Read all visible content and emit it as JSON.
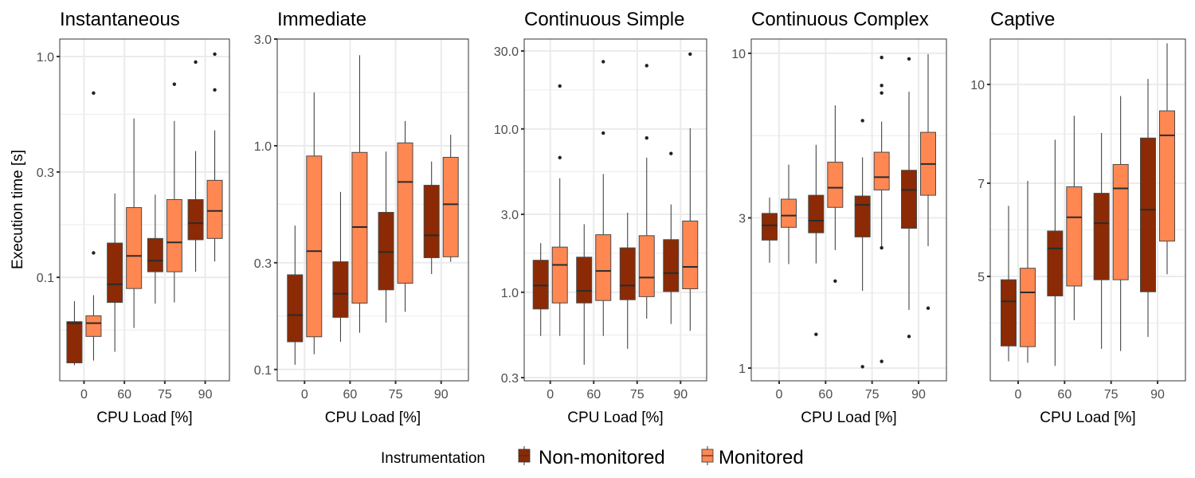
{
  "chart_data": {
    "type": "boxplot",
    "facet_layout": "1 row x 5 columns, independent y scales (log10)",
    "ylabel": "Execution time [s]",
    "xlabel": "CPU Load [%]",
    "categories": [
      "0",
      "60",
      "75",
      "90"
    ],
    "legend": {
      "title": "Instrumentation",
      "position": "bottom",
      "entries": [
        {
          "name": "Non-monitored",
          "color": "#8B2A04"
        },
        {
          "name": "Monitored",
          "color": "#FF8752"
        }
      ]
    },
    "grid": true,
    "panels": [
      {
        "title": "Instantaneous",
        "yscale": "log10",
        "ylim": [
          0.034,
          1.2
        ],
        "yticks": [
          0.1,
          0.3,
          1.0
        ],
        "ytick_labels": [
          "0.1",
          "0.3",
          "1.0"
        ],
        "series": [
          {
            "name": "Non-monitored",
            "boxes": [
              {
                "cat": "0",
                "lower": 0.04,
                "q1": 0.041,
                "median": 0.062,
                "q3": 0.063,
                "upper": 0.078,
                "outliers": []
              },
              {
                "cat": "60",
                "lower": 0.046,
                "q1": 0.077,
                "median": 0.093,
                "q3": 0.143,
                "upper": 0.24,
                "outliers": []
              },
              {
                "cat": "75",
                "lower": 0.076,
                "q1": 0.106,
                "median": 0.119,
                "q3": 0.15,
                "upper": 0.237,
                "outliers": []
              },
              {
                "cat": "90",
                "lower": 0.106,
                "q1": 0.148,
                "median": 0.176,
                "q3": 0.225,
                "upper": 0.373,
                "outliers": [
                  0.944
                ]
              }
            ]
          },
          {
            "name": "Monitored",
            "boxes": [
              {
                "cat": "0",
                "lower": 0.042,
                "q1": 0.054,
                "median": 0.062,
                "q3": 0.067,
                "upper": 0.083,
                "outliers": [
                  0.129,
                  0.683
                ]
              },
              {
                "cat": "60",
                "lower": 0.059,
                "q1": 0.089,
                "median": 0.125,
                "q3": 0.207,
                "upper": 0.524,
                "outliers": []
              },
              {
                "cat": "75",
                "lower": 0.077,
                "q1": 0.106,
                "median": 0.144,
                "q3": 0.225,
                "upper": 0.511,
                "outliers": [
                  0.749
                ]
              },
              {
                "cat": "90",
                "lower": 0.118,
                "q1": 0.15,
                "median": 0.2,
                "q3": 0.275,
                "upper": 0.463,
                "outliers": [
                  0.706,
                  1.025
                ]
              }
            ]
          }
        ]
      },
      {
        "title": "Immediate",
        "yscale": "log10",
        "ylim": [
          0.089,
          3.0
        ],
        "yticks": [
          0.1,
          0.3,
          1.0,
          3.0
        ],
        "ytick_labels": [
          "0.1",
          "0.3",
          "1.0",
          "3.0"
        ],
        "series": [
          {
            "name": "Non-monitored",
            "boxes": [
              {
                "cat": "0",
                "lower": 0.105,
                "q1": 0.133,
                "median": 0.175,
                "q3": 0.265,
                "upper": 0.44,
                "outliers": []
              },
              {
                "cat": "60",
                "lower": 0.133,
                "q1": 0.171,
                "median": 0.218,
                "q3": 0.303,
                "upper": 0.622,
                "outliers": []
              },
              {
                "cat": "75",
                "lower": 0.162,
                "q1": 0.227,
                "median": 0.335,
                "q3": 0.504,
                "upper": 0.942,
                "outliers": []
              },
              {
                "cat": "90",
                "lower": 0.267,
                "q1": 0.316,
                "median": 0.398,
                "q3": 0.666,
                "upper": 0.851,
                "outliers": []
              }
            ]
          },
          {
            "name": "Monitored",
            "boxes": [
              {
                "cat": "0",
                "lower": 0.117,
                "q1": 0.14,
                "median": 0.338,
                "q3": 0.9,
                "upper": 1.73,
                "outliers": []
              },
              {
                "cat": "60",
                "lower": 0.146,
                "q1": 0.198,
                "median": 0.433,
                "q3": 0.934,
                "upper": 2.54,
                "outliers": []
              },
              {
                "cat": "75",
                "lower": 0.181,
                "q1": 0.243,
                "median": 0.689,
                "q3": 1.03,
                "upper": 1.29,
                "outliers": []
              },
              {
                "cat": "90",
                "lower": 0.303,
                "q1": 0.319,
                "median": 0.548,
                "q3": 0.888,
                "upper": 1.12,
                "outliers": []
              }
            ]
          }
        ]
      },
      {
        "title": "Continuous Simple",
        "yscale": "log10",
        "ylim": [
          0.287,
          35.5
        ],
        "yticks": [
          0.3,
          1.0,
          3.0,
          10.0,
          30.0
        ],
        "ytick_labels": [
          "0.3",
          "1.0",
          "3.0",
          "10.0",
          "30.0"
        ],
        "series": [
          {
            "name": "Non-monitored",
            "boxes": [
              {
                "cat": "0",
                "lower": 0.54,
                "q1": 0.79,
                "median": 1.1,
                "q3": 1.57,
                "upper": 2.0,
                "outliers": []
              },
              {
                "cat": "60",
                "lower": 0.36,
                "q1": 0.86,
                "median": 1.02,
                "q3": 1.64,
                "upper": 2.61,
                "outliers": []
              },
              {
                "cat": "75",
                "lower": 0.45,
                "q1": 0.9,
                "median": 1.1,
                "q3": 1.87,
                "upper": 3.07,
                "outliers": []
              },
              {
                "cat": "90",
                "lower": 0.64,
                "q1": 1.01,
                "median": 1.31,
                "q3": 2.1,
                "upper": 3.45,
                "outliers": [
                  7.07
                ]
              }
            ]
          },
          {
            "name": "Monitored",
            "boxes": [
              {
                "cat": "0",
                "lower": 0.54,
                "q1": 0.86,
                "median": 1.47,
                "q3": 1.89,
                "upper": 4.99,
                "outliers": [
                  6.67,
                  18.3
                ]
              },
              {
                "cat": "60",
                "lower": 0.54,
                "q1": 0.89,
                "median": 1.35,
                "q3": 2.25,
                "upper": 5.29,
                "outliers": [
                  9.43,
                  25.8
                ]
              },
              {
                "cat": "75",
                "lower": 0.69,
                "q1": 0.94,
                "median": 1.23,
                "q3": 2.22,
                "upper": 6.67,
                "outliers": [
                  8.8,
                  24.4
                ]
              },
              {
                "cat": "90",
                "lower": 0.58,
                "q1": 1.05,
                "median": 1.43,
                "q3": 2.73,
                "upper": 10.1,
                "outliers": [
                  28.7
                ]
              }
            ]
          }
        ]
      },
      {
        "title": "Continuous Complex",
        "yscale": "log10",
        "ylim": [
          0.911,
          11.1
        ],
        "yticks": [
          1,
          3,
          10
        ],
        "ytick_labels": [
          "1",
          "3",
          "10"
        ],
        "series": [
          {
            "name": "Non-monitored",
            "boxes": [
              {
                "cat": "0",
                "lower": 2.16,
                "q1": 2.55,
                "median": 2.84,
                "q3": 3.1,
                "upper": 3.48,
                "outliers": []
              },
              {
                "cat": "60",
                "lower": 2.15,
                "q1": 2.69,
                "median": 2.94,
                "q3": 3.54,
                "upper": 5.12,
                "outliers": [
                  1.28
                ]
              },
              {
                "cat": "75",
                "lower": 1.76,
                "q1": 2.61,
                "median": 3.3,
                "q3": 3.52,
                "upper": 4.67,
                "outliers": [
                  1.01,
                  6.11
                ]
              },
              {
                "cat": "90",
                "lower": 1.53,
                "q1": 2.78,
                "median": 3.68,
                "q3": 4.25,
                "upper": 7.55,
                "outliers": [
                  1.26,
                  9.6
                ]
              }
            ]
          },
          {
            "name": "Monitored",
            "boxes": [
              {
                "cat": "0",
                "lower": 2.14,
                "q1": 2.8,
                "median": 3.05,
                "q3": 3.44,
                "upper": 4.43,
                "outliers": []
              },
              {
                "cat": "60",
                "lower": 2.37,
                "q1": 3.24,
                "median": 3.74,
                "q3": 4.51,
                "upper": 6.83,
                "outliers": [
                  1.89
                ]
              },
              {
                "cat": "75",
                "lower": 2.41,
                "q1": 3.68,
                "median": 4.04,
                "q3": 4.85,
                "upper": 6.07,
                "outliers": [
                  1.05,
                  2.41,
                  7.48,
                  7.9,
                  9.7
                ]
              },
              {
                "cat": "90",
                "lower": 2.44,
                "q1": 3.54,
                "median": 4.45,
                "q3": 5.61,
                "upper": 9.94,
                "outliers": [
                  1.55
                ]
              }
            ]
          }
        ]
      },
      {
        "title": "Captive",
        "yscale": "log10",
        "ylim": [
          3.43,
          11.78
        ],
        "yticks": [
          5,
          7,
          10
        ],
        "ytick_labels": [
          "5",
          "7",
          "10"
        ],
        "minor_gridlines": [
          3.6,
          4.2,
          5.9,
          8.4
        ],
        "series": [
          {
            "name": "Non-monitored",
            "boxes": [
              {
                "cat": "0",
                "lower": 3.68,
                "q1": 3.89,
                "median": 4.57,
                "q3": 4.94,
                "upper": 6.45,
                "outliers": []
              },
              {
                "cat": "60",
                "lower": 3.62,
                "q1": 4.66,
                "median": 5.53,
                "q3": 5.89,
                "upper": 8.19,
                "outliers": []
              },
              {
                "cat": "75",
                "lower": 3.85,
                "q1": 4.94,
                "median": 6.06,
                "q3": 6.75,
                "upper": 8.39,
                "outliers": []
              },
              {
                "cat": "90",
                "lower": 4.02,
                "q1": 4.73,
                "median": 6.36,
                "q3": 8.24,
                "upper": 10.2,
                "outliers": []
              }
            ]
          },
          {
            "name": "Monitored",
            "boxes": [
              {
                "cat": "0",
                "lower": 3.66,
                "q1": 3.88,
                "median": 4.72,
                "q3": 5.15,
                "upper": 7.06,
                "outliers": []
              },
              {
                "cat": "60",
                "lower": 4.27,
                "q1": 4.83,
                "median": 6.19,
                "q3": 6.91,
                "upper": 8.93,
                "outliers": []
              },
              {
                "cat": "75",
                "lower": 3.82,
                "q1": 4.94,
                "median": 6.87,
                "q3": 7.49,
                "upper": 9.59,
                "outliers": []
              },
              {
                "cat": "90",
                "lower": 5.04,
                "q1": 5.68,
                "median": 8.32,
                "q3": 9.09,
                "upper": 11.6,
                "outliers": []
              }
            ]
          }
        ]
      }
    ]
  }
}
